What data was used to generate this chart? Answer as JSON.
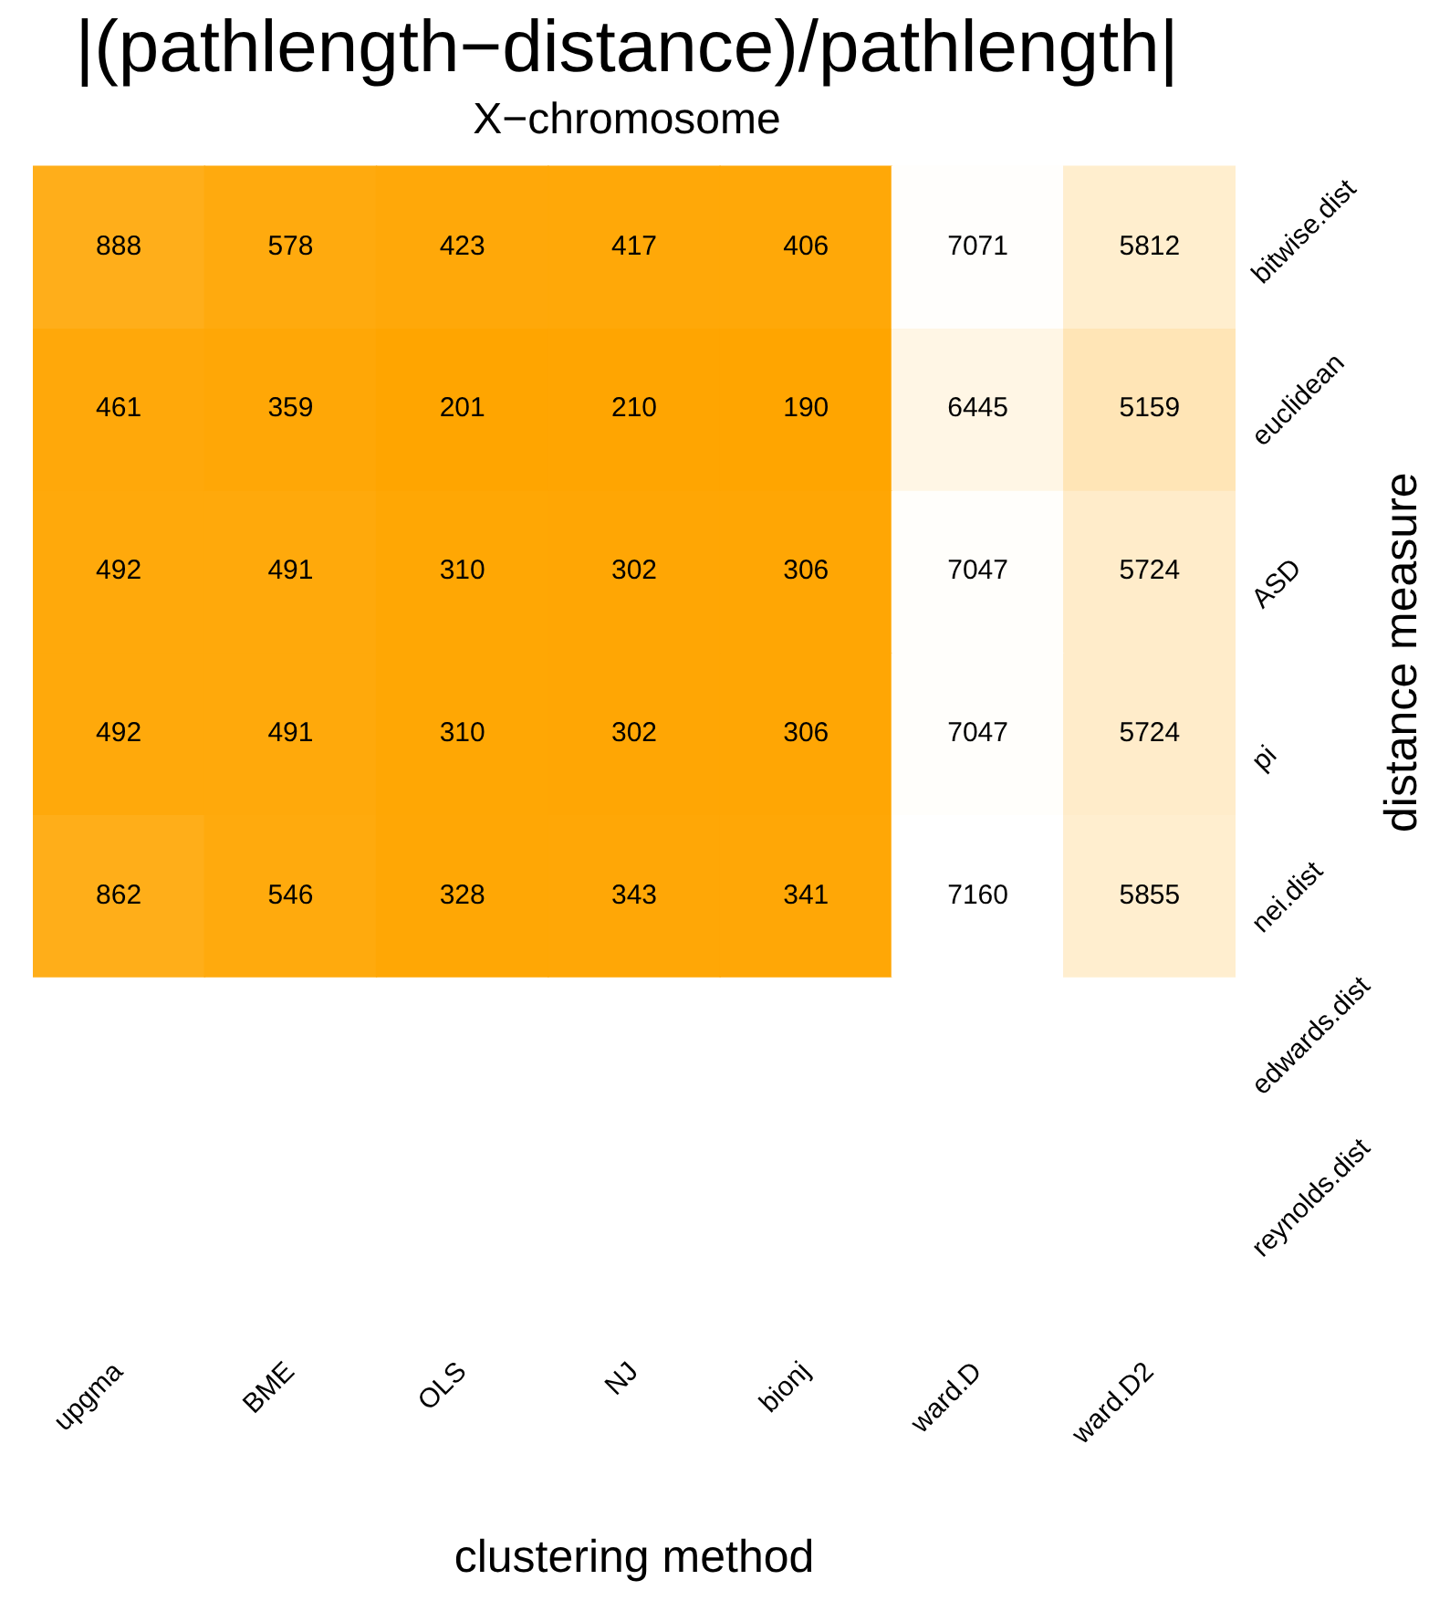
{
  "chart_data": {
    "type": "heatmap",
    "title": "|(pathlength−distance)/pathlength|",
    "subtitle": "X−chromosome",
    "xlabel": "clustering method",
    "ylabel": "distance measure",
    "categories": [
      "upgma",
      "BME",
      "OLS",
      "NJ",
      "bionj",
      "ward.D",
      "ward.D2"
    ],
    "y_categories": [
      "bitwise.dist",
      "euclidean",
      "ASD",
      "pi",
      "nei.dist",
      "edwards.dist",
      "reynolds.dist"
    ],
    "cells": [
      [
        888,
        578,
        423,
        417,
        406,
        7071,
        5812
      ],
      [
        461,
        359,
        201,
        210,
        190,
        6445,
        5159
      ],
      [
        492,
        491,
        310,
        302,
        306,
        7047,
        5724
      ],
      [
        492,
        491,
        310,
        302,
        306,
        7047,
        5724
      ],
      [
        862,
        546,
        328,
        343,
        341,
        7160,
        5855
      ],
      [
        null,
        null,
        null,
        null,
        null,
        null,
        null
      ],
      [
        null,
        null,
        null,
        null,
        null,
        null,
        null
      ]
    ],
    "colors": [
      "#ffa500",
      "#ffffff"
    ],
    "data_labels": true,
    "grid": false,
    "legend": false
  }
}
